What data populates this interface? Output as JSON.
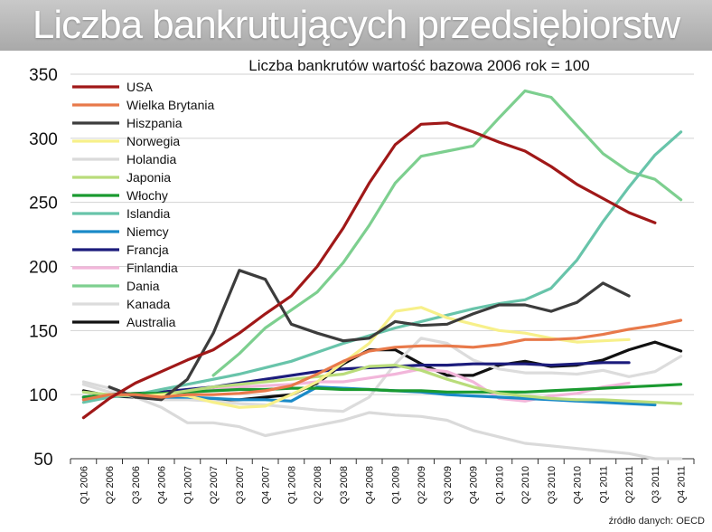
{
  "header": {
    "title": "Liczba bankrutujących przedsiębiorstw"
  },
  "source_note": "źródło danych: OECD",
  "chart_data": {
    "type": "line",
    "title": "Liczba bankrutów  wartość bazowa 2006 rok = 100",
    "xlabel": "",
    "ylabel": "",
    "ylim": [
      50,
      350
    ],
    "yticks": [
      50,
      100,
      150,
      200,
      250,
      300,
      350
    ],
    "grid": "horizontal",
    "legend_position": "top-left",
    "categories": [
      "Q1 2006",
      "Q2 2006",
      "Q3 2006",
      "Q4 2006",
      "Q1 2007",
      "Q2 2007",
      "Q3 2007",
      "Q4 2007",
      "Q1 2008",
      "Q2 2008",
      "Q3 2008",
      "Q4 2008",
      "Q1 2009",
      "Q2 2009",
      "Q3 2009",
      "Q4 2009",
      "Q1 2010",
      "Q2 2010",
      "Q3 2010",
      "Q4 2010",
      "Q1 2011",
      "Q2 2011",
      "Q3 2011",
      "Q4 2011"
    ],
    "series": [
      {
        "name": "USA",
        "color": "#a01818",
        "values": [
          82,
          97,
          109,
          118,
          127,
          135,
          148,
          163,
          177,
          200,
          230,
          265,
          295,
          311,
          312,
          305,
          297,
          290,
          278,
          264,
          253,
          242,
          234,
          null
        ]
      },
      {
        "name": "Wielka Brytania",
        "color": "#e8794a",
        "values": [
          96,
          100,
          100,
          98,
          100,
          100,
          101,
          103,
          107,
          116,
          126,
          134,
          137,
          138,
          138,
          137,
          139,
          143,
          143,
          144,
          147,
          151,
          154,
          158
        ]
      },
      {
        "name": "Hiszpania",
        "color": "#3c3c3c",
        "values": [
          null,
          106,
          98,
          96,
          112,
          148,
          197,
          190,
          155,
          148,
          142,
          144,
          157,
          154,
          155,
          163,
          170,
          170,
          165,
          172,
          187,
          177,
          null,
          null
        ]
      },
      {
        "name": "Norwegia",
        "color": "#f7f08a",
        "values": [
          null,
          null,
          98,
          100,
          99,
          94,
          90,
          91,
          100,
          110,
          125,
          140,
          165,
          168,
          160,
          155,
          150,
          148,
          144,
          141,
          142,
          143,
          null,
          null
        ]
      },
      {
        "name": "Holandia",
        "color": "#dadada",
        "values": [
          110,
          105,
          98,
          90,
          78,
          78,
          75,
          68,
          72,
          76,
          80,
          86,
          84,
          83,
          80,
          72,
          67,
          62,
          60,
          58,
          56,
          54,
          50,
          50
        ]
      },
      {
        "name": "Japonia",
        "color": "#b9dc7a",
        "values": [
          102,
          100,
          99,
          100,
          103,
          106,
          108,
          110,
          112,
          114,
          116,
          122,
          123,
          119,
          112,
          106,
          101,
          99,
          97,
          96,
          96,
          95,
          94,
          93
        ]
      },
      {
        "name": "Włochy",
        "color": "#1a9a30",
        "values": [
          98,
          100,
          101,
          101,
          102,
          103,
          104,
          104,
          105,
          105,
          104,
          104,
          103,
          103,
          102,
          102,
          102,
          102,
          103,
          104,
          105,
          106,
          107,
          108
        ]
      },
      {
        "name": "Islandia",
        "color": "#68c4aa",
        "values": [
          94,
          98,
          100,
          104,
          108,
          112,
          116,
          121,
          126,
          133,
          140,
          146,
          152,
          157,
          162,
          167,
          171,
          174,
          183,
          205,
          235,
          262,
          287,
          305
        ]
      },
      {
        "name": "Niemcy",
        "color": "#1a8ac8",
        "values": [
          98,
          99,
          99,
          98,
          98,
          97,
          96,
          96,
          95,
          106,
          105,
          104,
          103,
          102,
          100,
          99,
          98,
          97,
          96,
          95,
          94,
          93,
          92,
          null
        ]
      },
      {
        "name": "Francja",
        "color": "#1c1c7c",
        "values": [
          98,
          100,
          101,
          102,
          104,
          106,
          109,
          112,
          115,
          118,
          120,
          121,
          122,
          123,
          123,
          124,
          124,
          124,
          123,
          124,
          125,
          125,
          null,
          null
        ]
      },
      {
        "name": "Finlandia",
        "color": "#f2b6da",
        "values": [
          96,
          99,
          100,
          101,
          102,
          104,
          106,
          107,
          108,
          110,
          110,
          113,
          116,
          120,
          118,
          110,
          97,
          95,
          99,
          101,
          106,
          109,
          null,
          null
        ]
      },
      {
        "name": "Dania",
        "color": "#7dcf8f",
        "values": [
          null,
          null,
          null,
          null,
          null,
          115,
          132,
          152,
          166,
          180,
          203,
          232,
          265,
          286,
          290,
          294,
          316,
          337,
          332,
          310,
          288,
          274,
          268,
          252
        ]
      },
      {
        "name": "Kanada",
        "color": "#dcdcdc",
        "values": [
          108,
          102,
          98,
          96,
          96,
          95,
          93,
          92,
          90,
          88,
          87,
          98,
          124,
          144,
          140,
          127,
          120,
          117,
          117,
          116,
          119,
          114,
          118,
          130
        ]
      },
      {
        "name": "Australia",
        "color": "#111111",
        "values": [
          103,
          99,
          98,
          97,
          97,
          96,
          96,
          98,
          100,
          109,
          124,
          135,
          135,
          124,
          115,
          115,
          123,
          126,
          122,
          123,
          127,
          135,
          141,
          134
        ]
      }
    ]
  }
}
